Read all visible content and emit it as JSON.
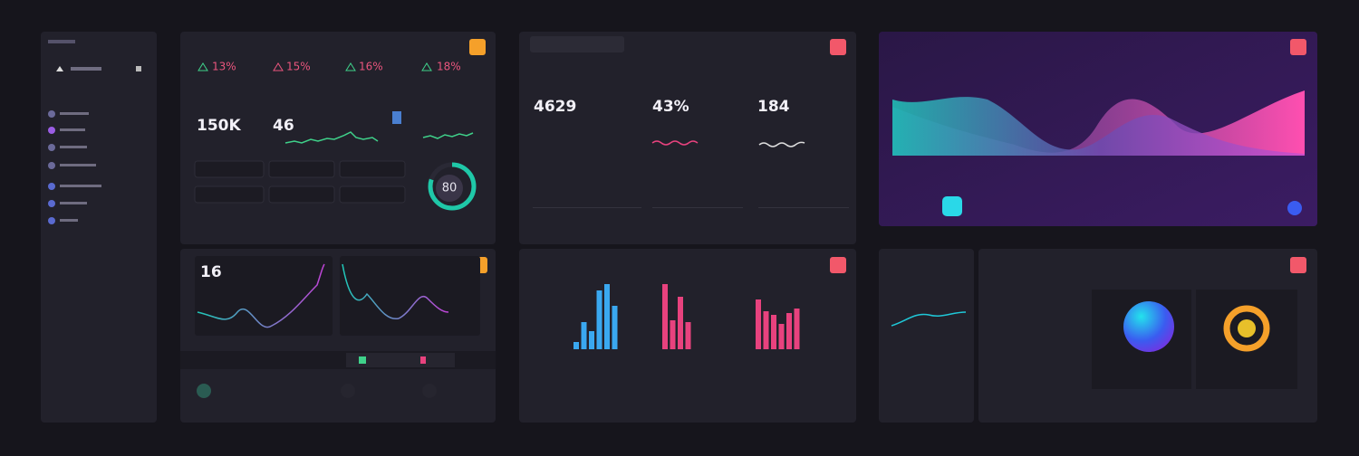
{
  "stats": {
    "percentages": [
      "13%",
      "15%",
      "16%",
      "18%"
    ],
    "totals": [
      "150K",
      "46"
    ],
    "gauge": 80
  },
  "trend_card": {
    "value": "16"
  },
  "metrics": [
    "4629",
    "43%",
    "184"
  ],
  "bar_chart": {
    "groups": [
      {
        "color": "#3aa8f0",
        "values": [
          8,
          30,
          20,
          65,
          72,
          48
        ]
      },
      {
        "color": "#e8427e",
        "values": [
          72,
          32,
          58,
          30
        ]
      },
      {
        "color": "#e8427e",
        "values": [
          55,
          42,
          38,
          28,
          40,
          45
        ]
      }
    ]
  }
}
